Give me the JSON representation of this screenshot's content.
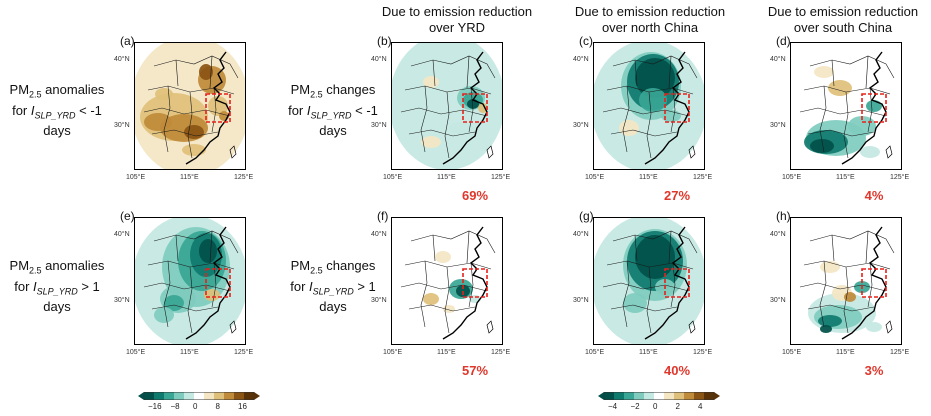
{
  "columns": [
    {
      "id": "b",
      "title": "Due to emission reduction over YRD"
    },
    {
      "id": "c",
      "title": "Due to emission reduction over north China"
    },
    {
      "id": "d",
      "title": "Due to emission reduction over south China"
    }
  ],
  "row_labels": {
    "a_line1_pre": "PM",
    "a_line1_sub": "2.5",
    "a_line1_post": " anomalies",
    "a_line2_pre": "for ",
    "a_line2_I": "I",
    "a_line2_sub": "SLP_YRD",
    "a_line2_post": " < -1",
    "a_line3": "days",
    "b_line1_pre": "PM",
    "b_line1_sub": "2.5",
    "b_line1_post": " changes",
    "b_line2_pre": "for ",
    "b_line2_I": "I",
    "b_line2_sub": "SLP_YRD",
    "b_line2_post": " < -1",
    "b_line3": "days",
    "e_line1_pre": "PM",
    "e_line1_sub": "2.5",
    "e_line1_post": " anomalies",
    "e_line2_pre": "for ",
    "e_line2_I": "I",
    "e_line2_sub": "SLP_YRD",
    "e_line2_post": " > 1",
    "e_line3": "days",
    "f_line1_pre": "PM",
    "f_line1_sub": "2.5",
    "f_line1_post": " changes",
    "f_line2_pre": "for ",
    "f_line2_I": "I",
    "f_line2_sub": "SLP_YRD",
    "f_line2_post": " > 1",
    "f_line3": "days"
  },
  "panels": [
    {
      "label": "(a)",
      "pct": ""
    },
    {
      "label": "(b)",
      "pct": "69%"
    },
    {
      "label": "(c)",
      "pct": "27%"
    },
    {
      "label": "(d)",
      "pct": "4%"
    },
    {
      "label": "(e)",
      "pct": ""
    },
    {
      "label": "(f)",
      "pct": "57%"
    },
    {
      "label": "(g)",
      "pct": "40%"
    },
    {
      "label": "(h)",
      "pct": "3%"
    }
  ],
  "axes": {
    "y_ticks": [
      "40°N",
      "30°N"
    ],
    "x_ticks": [
      "105°E",
      "115°E",
      "125°E"
    ]
  },
  "colorbars": [
    {
      "ticks": [
        "−16",
        "−8",
        "0",
        "8",
        "16"
      ]
    },
    {
      "ticks": [
        "−4",
        "−2",
        "0",
        "2",
        "4"
      ]
    }
  ],
  "colors": {
    "percent": "#e0372c",
    "region_box": "#e8201a",
    "scale": [
      "#01504a",
      "#0f7a6e",
      "#3aa695",
      "#7fccbf",
      "#c4e8e2",
      "#ffffff",
      "#f4e6c3",
      "#dfc07a",
      "#bf8a3a",
      "#8a5414",
      "#5a3208"
    ]
  }
}
